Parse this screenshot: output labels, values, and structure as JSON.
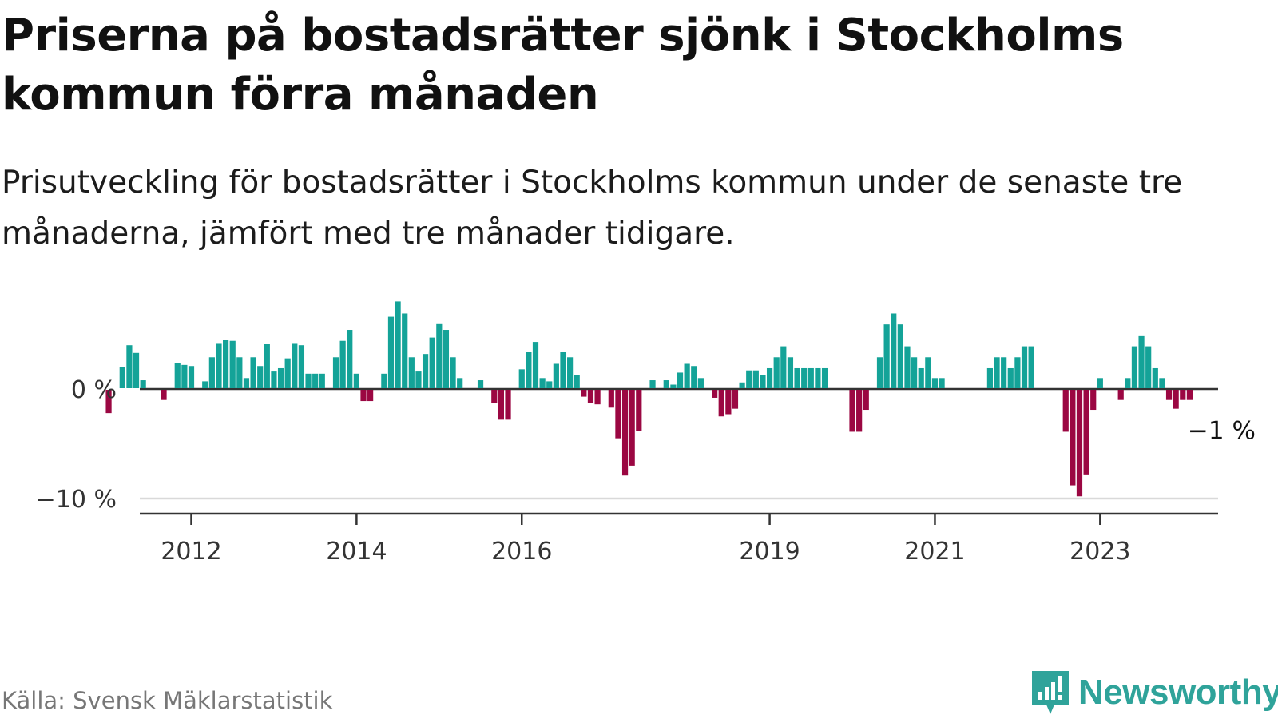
{
  "title": "Priserna på bostadsrätter sjönk i Stockholms kommun förra månaden",
  "subtitle": "Prisutveckling för bostadsrätter i Stockholms kommun under de senaste tre månaderna, jämfört med tre månader tidigare.",
  "source": "Källa: Svensk Mäklarstatistik",
  "logo": {
    "text": "Newsworthy",
    "icon": "newsworthy-logo-icon"
  },
  "colors": {
    "positive": "#14a398",
    "negative": "#9b0742",
    "axis": "#333333",
    "grid": "#d9d9d9",
    "brand": "#2fa39a"
  },
  "chart_data": {
    "type": "bar",
    "title": "Priserna på bostadsrätter sjönk i Stockholms kommun förra månaden",
    "xlabel": "",
    "ylabel": "",
    "ylim": [
      -11.5,
      8.5
    ],
    "yticks": [
      0,
      -10
    ],
    "ytick_labels": [
      "0 %",
      "−10 %"
    ],
    "start": {
      "year": 2011,
      "month": 1
    },
    "xticks": [
      {
        "label": "2012",
        "year": 2012,
        "month": 1
      },
      {
        "label": "2014",
        "year": 2014,
        "month": 1
      },
      {
        "label": "2016",
        "year": 2016,
        "month": 1
      },
      {
        "label": "2019",
        "year": 2019,
        "month": 1
      },
      {
        "label": "2021",
        "year": 2021,
        "month": 1
      },
      {
        "label": "2023",
        "year": 2023,
        "month": 1
      }
    ],
    "annotation": {
      "text": "−1 %",
      "month_index": 157
    },
    "values": [
      -2.2,
      0,
      2,
      4,
      3.3,
      0.8,
      0,
      0,
      -1,
      0,
      2.4,
      2.2,
      2.1,
      0,
      0.7,
      2.9,
      4.2,
      4.5,
      4.4,
      2.9,
      1,
      2.9,
      2.1,
      4.1,
      1.6,
      1.9,
      2.8,
      4.2,
      4,
      1.4,
      1.4,
      1.4,
      0,
      2.9,
      4.4,
      5.4,
      1.4,
      -1.1,
      -1.1,
      0,
      1.4,
      6.6,
      8,
      6.9,
      2.9,
      1.6,
      3.2,
      4.7,
      6,
      5.4,
      2.9,
      1,
      0,
      0,
      0.8,
      0,
      -1.3,
      -2.8,
      -2.8,
      0,
      1.8,
      3.4,
      4.3,
      1,
      0.7,
      2.3,
      3.4,
      2.9,
      1.3,
      -0.7,
      -1.3,
      -1.4,
      0,
      -1.7,
      -4.5,
      -7.9,
      -7,
      -3.8,
      0,
      0.8,
      0,
      0.8,
      0.4,
      1.5,
      2.3,
      2.1,
      1,
      0,
      -0.8,
      -2.5,
      -2.3,
      -1.8,
      0.6,
      1.7,
      1.7,
      1.3,
      1.9,
      2.9,
      3.9,
      2.9,
      1.9,
      1.9,
      1.9,
      1.9,
      1.9,
      0,
      0,
      0,
      -3.9,
      -3.9,
      -1.9,
      0,
      2.9,
      5.9,
      6.9,
      5.9,
      3.9,
      2.9,
      1.9,
      2.9,
      1,
      1,
      0,
      0,
      0,
      0,
      0,
      0,
      1.9,
      2.9,
      2.9,
      1.9,
      2.9,
      3.9,
      3.9,
      0,
      0,
      0,
      0,
      -3.9,
      -8.8,
      -9.8,
      -7.8,
      -1.9,
      1,
      0,
      0,
      -1,
      1,
      3.9,
      4.9,
      3.9,
      1.9,
      1,
      -1,
      -1.8,
      -1,
      -1
    ]
  }
}
